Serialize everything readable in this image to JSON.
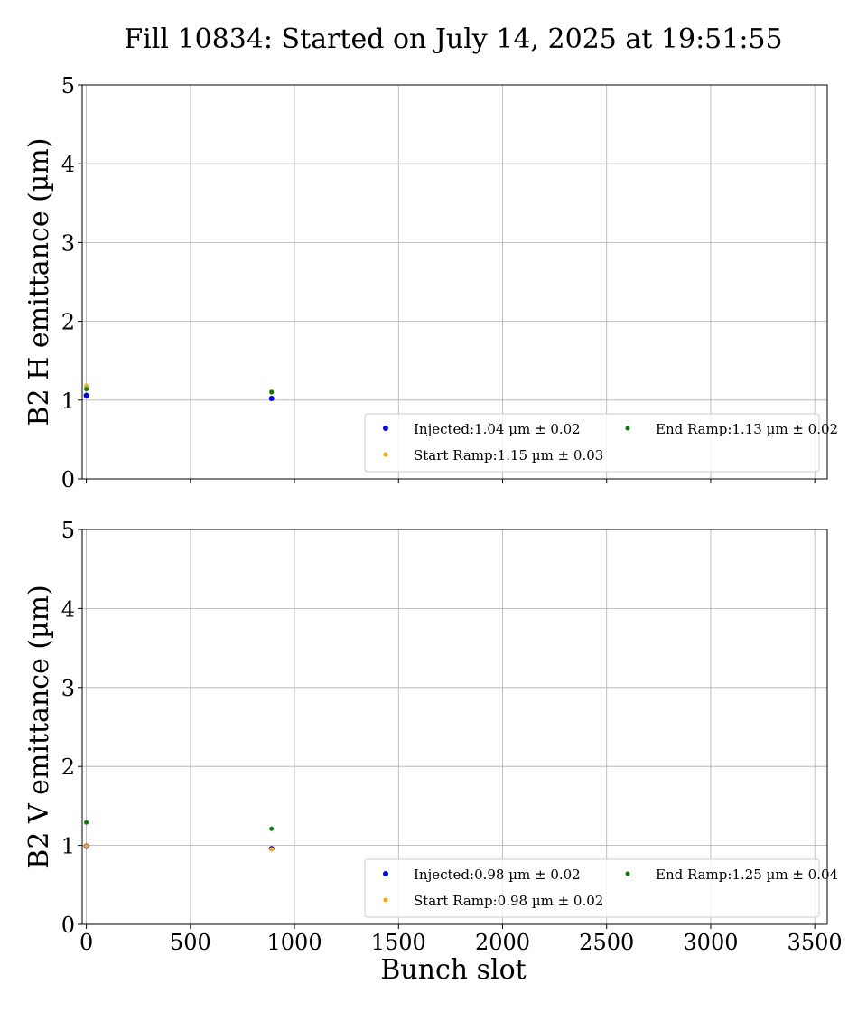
{
  "chart_data": {
    "title": "Fill 10834: Started on July 14, 2025 at 19:51:55",
    "xlabel": "Bunch slot",
    "xlim": [
      -20,
      3560
    ],
    "xticks": [
      0,
      500,
      1000,
      1500,
      2000,
      2500,
      3000,
      3500
    ],
    "subplots": [
      {
        "type": "scatter",
        "ylabel": "B2 H emittance (µm)",
        "ylim": [
          0,
          5
        ],
        "yticks": [
          0,
          1,
          2,
          3,
          4,
          5
        ],
        "grid": true,
        "legend_position": "lower-right",
        "series": [
          {
            "name": "Injected",
            "legend": "Injected:1.04 µm ± 0.02",
            "color": "#0000ff",
            "size": 6,
            "points": [
              [
                0,
                1.06
              ],
              [
                890,
                1.02
              ]
            ]
          },
          {
            "name": "Start Ramp",
            "legend": "Start Ramp:1.15 µm ± 0.03",
            "color": "#ffa500",
            "size": 5,
            "points": [
              [
                0,
                1.18
              ],
              [
                890,
                1.11
              ]
            ]
          },
          {
            "name": "End Ramp",
            "legend": "End Ramp:1.13 µm ± 0.02",
            "color": "#008000",
            "size": 5,
            "points": [
              [
                0,
                1.14
              ],
              [
                890,
                1.1
              ]
            ]
          }
        ]
      },
      {
        "type": "scatter",
        "ylabel": "B2 V emittance (µm)",
        "ylim": [
          0,
          5
        ],
        "yticks": [
          0,
          1,
          2,
          3,
          4,
          5
        ],
        "grid": true,
        "legend_position": "lower-right",
        "series": [
          {
            "name": "Injected",
            "legend": "Injected:0.98 µm ± 0.02",
            "color": "#0000ff",
            "size": 6,
            "points": [
              [
                0,
                0.99
              ],
              [
                890,
                0.96
              ]
            ]
          },
          {
            "name": "Start Ramp",
            "legend": "Start Ramp:0.98 µm ± 0.02",
            "color": "#ffa500",
            "size": 5,
            "points": [
              [
                0,
                0.99
              ],
              [
                890,
                0.95
              ]
            ]
          },
          {
            "name": "End Ramp",
            "legend": "End Ramp:1.25 µm ± 0.04",
            "color": "#008000",
            "size": 5,
            "points": [
              [
                0,
                1.29
              ],
              [
                890,
                1.21
              ]
            ]
          }
        ]
      }
    ]
  }
}
